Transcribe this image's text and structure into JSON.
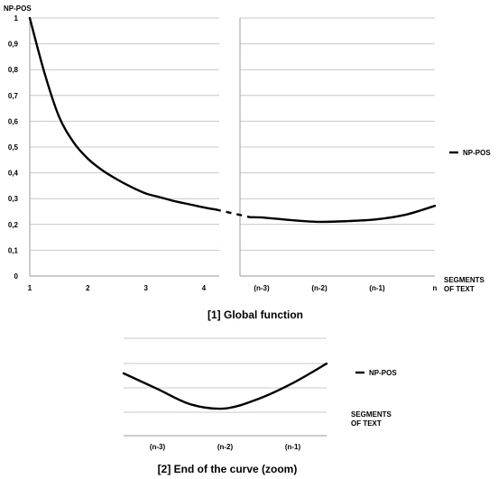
{
  "chart_data": [
    {
      "type": "line",
      "ylabel": "NP-POS",
      "xlabel": "SEGMENTS OF TEXT",
      "caption": "[1]  Global function",
      "ylim": [
        0,
        1
      ],
      "yticks": [
        "0",
        "0,1",
        "0,2",
        "0,3",
        "0,4",
        "0,5",
        "0,6",
        "0,7",
        "0,8",
        "0,9",
        "1"
      ],
      "grid": true,
      "legend_position": "right",
      "panels": [
        {
          "categories": [
            "1",
            "2",
            "3",
            "4"
          ],
          "series": [
            {
              "name": "NP-POS",
              "x": [
                1,
                1.25,
                1.5,
                1.75,
                2,
                2.25,
                2.5,
                2.75,
                3,
                3.25,
                3.5,
                3.75,
                4,
                4.2
              ],
              "y": [
                1.0,
                0.79,
                0.62,
                0.52,
                0.455,
                0.41,
                0.375,
                0.345,
                0.32,
                0.305,
                0.29,
                0.278,
                0.266,
                0.258
              ]
            }
          ]
        },
        {
          "categories": [
            "(n-3)",
            "(n-2)",
            "(n-1)",
            "n"
          ],
          "series": [
            {
              "name": "NP-POS",
              "x": [
                0.8,
                1,
                1.5,
                2,
                2.5,
                3,
                3.5,
                4
              ],
              "y": [
                0.228,
                0.227,
                0.217,
                0.21,
                0.213,
                0.22,
                0.238,
                0.272
              ]
            }
          ]
        }
      ],
      "legend": [
        "NP-POS"
      ]
    },
    {
      "type": "line",
      "xlabel": "SEGMENTS OF TEXT",
      "caption": "[2] End of the curve (zoom)",
      "grid": true,
      "legend_position": "right",
      "categories": [
        "(n-3)",
        "(n-2)",
        "(n-1)"
      ],
      "series": [
        {
          "name": "NP-POS",
          "x": [
            0.5,
            1,
            1.5,
            2,
            2.5,
            3,
            3.5
          ],
          "y": [
            0.227,
            0.219,
            0.211,
            0.209,
            0.214,
            0.222,
            0.232
          ]
        }
      ],
      "legend": [
        "NP-POS"
      ]
    }
  ]
}
